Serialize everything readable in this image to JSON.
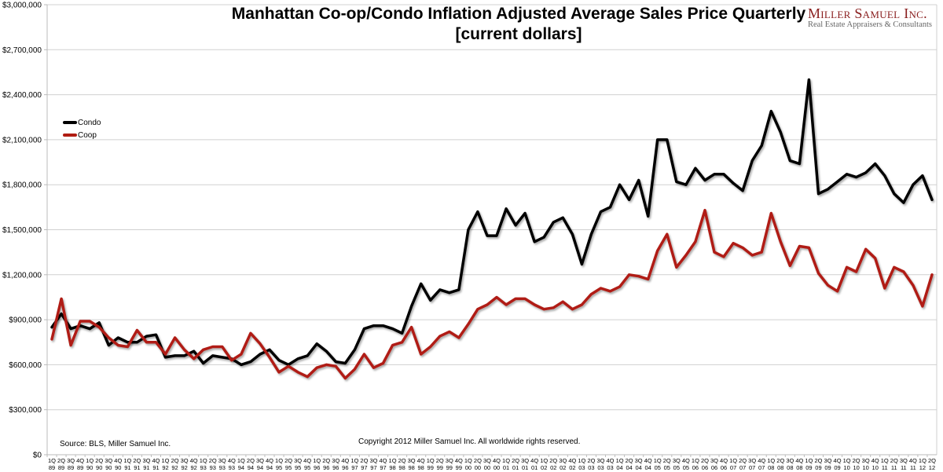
{
  "brand": {
    "name": "Miller Samuel Inc.",
    "tagline": "Real Estate Appraisers & Consultants"
  },
  "footer": {
    "source": "Source: BLS, Miller Samuel Inc.",
    "copyright": "Copyright 2012 Miller Samuel Inc. All worldwide rights reserved."
  },
  "chart_data": {
    "type": "line",
    "title": "Manhattan Co-op/Condo Inflation Adjusted Average Sales Price Quarterly",
    "subtitle": "[current dollars]",
    "xlabel": "",
    "ylabel": "",
    "ylim": [
      0,
      3000000
    ],
    "yticks": [
      0,
      300000,
      600000,
      900000,
      1200000,
      1500000,
      1800000,
      2100000,
      2400000,
      2700000,
      3000000
    ],
    "ytick_labels": [
      "$0",
      "$300,000",
      "$600,000",
      "$900,000",
      "$1,200,000",
      "$1,500,000",
      "$1,800,000",
      "$2,100,000",
      "$2,400,000",
      "$2,700,000",
      "$3,000,000"
    ],
    "grid": true,
    "legend_position": "top-left",
    "categories": [
      "1Q 89",
      "2Q 89",
      "3Q 89",
      "4Q 89",
      "1Q 90",
      "2Q 90",
      "3Q 90",
      "4Q 90",
      "1Q 91",
      "2Q 91",
      "3Q 91",
      "4Q 91",
      "1Q 92",
      "2Q 92",
      "3Q 92",
      "4Q 92",
      "1Q 93",
      "2Q 93",
      "3Q 93",
      "4Q 93",
      "1Q 94",
      "2Q 94",
      "3Q 94",
      "4Q 94",
      "1Q 95",
      "2Q 95",
      "3Q 95",
      "4Q 95",
      "1Q 96",
      "2Q 96",
      "3Q 96",
      "4Q 96",
      "1Q 97",
      "2Q 97",
      "3Q 97",
      "4Q 97",
      "1Q 98",
      "2Q 98",
      "3Q 98",
      "4Q 98",
      "1Q 99",
      "2Q 99",
      "3Q 99",
      "4Q 99",
      "1Q 00",
      "2Q 00",
      "3Q 00",
      "4Q 00",
      "1Q 01",
      "2Q 01",
      "3Q 01",
      "4Q 01",
      "1Q 02",
      "2Q 02",
      "3Q 02",
      "4Q 02",
      "1Q 03",
      "2Q 03",
      "3Q 03",
      "4Q 03",
      "1Q 04",
      "2Q 04",
      "3Q 04",
      "4Q 04",
      "1Q 05",
      "2Q 05",
      "3Q 05",
      "4Q 05",
      "1Q 06",
      "2Q 06",
      "3Q 06",
      "4Q 06",
      "1Q 07",
      "2Q 07",
      "3Q 07",
      "4Q 07",
      "1Q 08",
      "2Q 08",
      "3Q 08",
      "4Q 08",
      "1Q 09",
      "2Q 09",
      "3Q 09",
      "4Q 09",
      "1Q 10",
      "2Q 10",
      "3Q 10",
      "4Q 10",
      "1Q 11",
      "2Q 11",
      "3Q 11",
      "4Q 11",
      "1Q 12",
      "2Q 12"
    ],
    "series": [
      {
        "name": "Condo",
        "color": "#000000",
        "values": [
          850000,
          940000,
          840000,
          860000,
          840000,
          880000,
          730000,
          780000,
          750000,
          750000,
          790000,
          800000,
          650000,
          660000,
          660000,
          690000,
          610000,
          660000,
          650000,
          640000,
          600000,
          620000,
          670000,
          700000,
          630000,
          600000,
          640000,
          660000,
          740000,
          690000,
          620000,
          610000,
          700000,
          840000,
          860000,
          860000,
          840000,
          810000,
          990000,
          1140000,
          1030000,
          1100000,
          1080000,
          1100000,
          1500000,
          1620000,
          1460000,
          1460000,
          1640000,
          1530000,
          1610000,
          1420000,
          1450000,
          1550000,
          1580000,
          1470000,
          1270000,
          1470000,
          1620000,
          1650000,
          1800000,
          1700000,
          1830000,
          1590000,
          2100000,
          2100000,
          1820000,
          1800000,
          1910000,
          1830000,
          1870000,
          1870000,
          1810000,
          1760000,
          1960000,
          2060000,
          2290000,
          2150000,
          1960000,
          1940000,
          2500000,
          1740000,
          1770000,
          1820000,
          1870000,
          1850000,
          1880000,
          1940000,
          1860000,
          1740000,
          1680000,
          1800000,
          1860000,
          1700000
        ]
      },
      {
        "name": "Coop",
        "color": "#b01c12",
        "values": [
          770000,
          1040000,
          730000,
          890000,
          890000,
          850000,
          780000,
          730000,
          720000,
          830000,
          750000,
          750000,
          670000,
          780000,
          700000,
          640000,
          700000,
          720000,
          720000,
          630000,
          670000,
          810000,
          740000,
          650000,
          550000,
          590000,
          550000,
          520000,
          580000,
          600000,
          590000,
          510000,
          570000,
          670000,
          580000,
          610000,
          730000,
          750000,
          850000,
          670000,
          720000,
          790000,
          820000,
          780000,
          870000,
          970000,
          1000000,
          1050000,
          1000000,
          1040000,
          1040000,
          1000000,
          970000,
          980000,
          1020000,
          970000,
          1000000,
          1070000,
          1110000,
          1090000,
          1120000,
          1200000,
          1190000,
          1170000,
          1360000,
          1470000,
          1250000,
          1330000,
          1420000,
          1630000,
          1350000,
          1320000,
          1410000,
          1380000,
          1330000,
          1350000,
          1610000,
          1420000,
          1260000,
          1390000,
          1380000,
          1210000,
          1130000,
          1090000,
          1250000,
          1220000,
          1370000,
          1310000,
          1110000,
          1250000,
          1220000,
          1130000,
          990000,
          1200000
        ]
      }
    ]
  }
}
